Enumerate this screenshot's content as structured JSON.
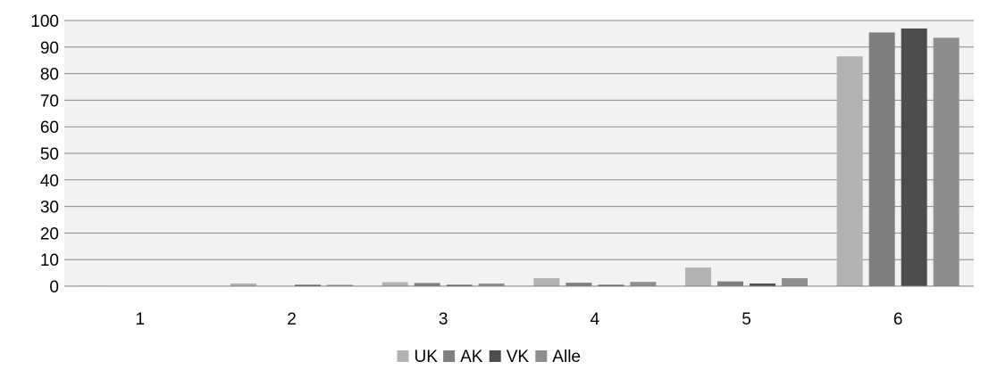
{
  "chart_data": {
    "type": "bar",
    "categories": [
      "1",
      "2",
      "3",
      "4",
      "5",
      "6"
    ],
    "series": [
      {
        "name": "UK",
        "color": "#b2b2b2",
        "values": [
          0.2,
          1.0,
          1.5,
          3.0,
          7.0,
          86.5
        ]
      },
      {
        "name": "AK",
        "color": "#7f7f7f",
        "values": [
          0.0,
          0.0,
          1.2,
          1.3,
          1.8,
          95.5
        ]
      },
      {
        "name": "VK",
        "color": "#4d4d4d",
        "values": [
          0.0,
          0.5,
          0.5,
          0.5,
          1.0,
          97.0
        ]
      },
      {
        "name": "Alle",
        "color": "#8e8e8e",
        "values": [
          0.0,
          0.5,
          1.0,
          1.6,
          3.0,
          93.5
        ]
      }
    ],
    "yticks": [
      "0",
      "10",
      "20",
      "30",
      "40",
      "50",
      "60",
      "70",
      "80",
      "90",
      "100"
    ],
    "ylim": [
      0,
      100
    ],
    "grid": true,
    "legend": "bottom-center",
    "plot_background": "#f2f2f2",
    "gridline_color": "#888888"
  }
}
